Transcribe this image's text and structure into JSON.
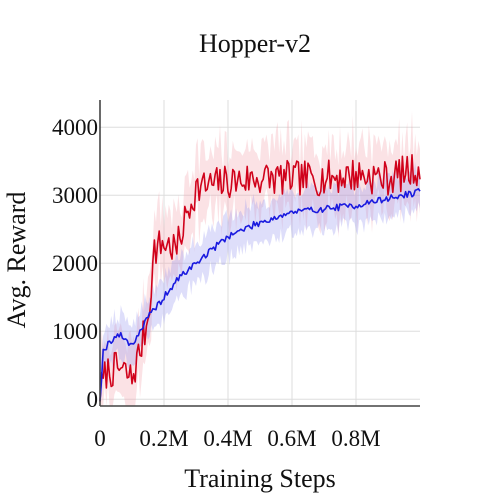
{
  "chart_data": {
    "type": "line",
    "title": "Hopper-v2",
    "xlabel": "Training Steps",
    "ylabel": "Avg. Reward",
    "xlim": [
      0,
      1000000
    ],
    "ylim": [
      -100,
      4400
    ],
    "x_ticks": [
      {
        "value": 0,
        "label": "0"
      },
      {
        "value": 200000,
        "label": "0.2M"
      },
      {
        "value": 400000,
        "label": "0.4M"
      },
      {
        "value": 600000,
        "label": "0.6M"
      },
      {
        "value": 800000,
        "label": "0.8M"
      }
    ],
    "y_ticks": [
      {
        "value": 0,
        "label": "0"
      },
      {
        "value": 1000,
        "label": "1000"
      },
      {
        "value": 2000,
        "label": "2000"
      },
      {
        "value": 3000,
        "label": "3000"
      },
      {
        "value": 4000,
        "label": "4000"
      }
    ],
    "grid": true,
    "legend": "none",
    "x_step": 5000,
    "series": [
      {
        "color": "#d0021b",
        "band_color": "#f4a6ae",
        "anchors": [
          [
            0,
            100
          ],
          [
            20000,
            400
          ],
          [
            60000,
            450
          ],
          [
            100000,
            300
          ],
          [
            130000,
            800
          ],
          [
            150000,
            1200
          ],
          [
            170000,
            2200
          ],
          [
            200000,
            2300
          ],
          [
            240000,
            2200
          ],
          [
            270000,
            2700
          ],
          [
            300000,
            3100
          ],
          [
            350000,
            3150
          ],
          [
            400000,
            3200
          ],
          [
            500000,
            3250
          ],
          [
            600000,
            3250
          ],
          [
            700000,
            3250
          ],
          [
            800000,
            3300
          ],
          [
            900000,
            3250
          ],
          [
            1000000,
            3400
          ]
        ],
        "noise": 260,
        "band": 480,
        "seed": 7
      },
      {
        "color": "#1a1adf",
        "band_color": "#9898ee",
        "anchors": [
          [
            0,
            0
          ],
          [
            10000,
            700
          ],
          [
            30000,
            850
          ],
          [
            60000,
            950
          ],
          [
            100000,
            800
          ],
          [
            150000,
            1200
          ],
          [
            200000,
            1500
          ],
          [
            250000,
            1800
          ],
          [
            300000,
            2000
          ],
          [
            350000,
            2200
          ],
          [
            400000,
            2400
          ],
          [
            450000,
            2500
          ],
          [
            500000,
            2600
          ],
          [
            600000,
            2750
          ],
          [
            700000,
            2800
          ],
          [
            800000,
            2850
          ],
          [
            900000,
            2950
          ],
          [
            1000000,
            3050
          ]
        ],
        "noise": 50,
        "band": 300,
        "seed": 19
      }
    ]
  }
}
